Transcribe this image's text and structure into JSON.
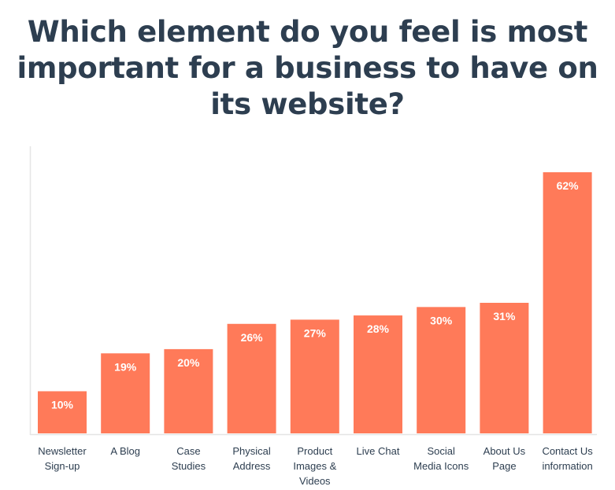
{
  "chart_data": {
    "type": "bar",
    "title": "Which element do you feel is most important for a business to have on its website?",
    "categories": [
      [
        "Newsletter",
        "Sign-up"
      ],
      [
        "A Blog"
      ],
      [
        "Case",
        "Studies"
      ],
      [
        "Physical",
        "Address"
      ],
      [
        "Product",
        "Images &",
        "Videos"
      ],
      [
        "Live Chat"
      ],
      [
        "Social",
        "Media Icons"
      ],
      [
        "About Us",
        "Page"
      ],
      [
        "Contact Us",
        "information"
      ]
    ],
    "values": [
      10,
      19,
      20,
      26,
      27,
      28,
      30,
      31,
      62
    ],
    "value_labels": [
      "10%",
      "19%",
      "20%",
      "26%",
      "27%",
      "28%",
      "30%",
      "31%",
      "62%"
    ],
    "ylim": [
      0,
      62
    ],
    "grid": false,
    "legend": "none",
    "colors": {
      "bar": "#ff7a59",
      "text": "#2d3e50",
      "axis": "#e5e5e5",
      "bar_label": "#ffffff"
    }
  }
}
